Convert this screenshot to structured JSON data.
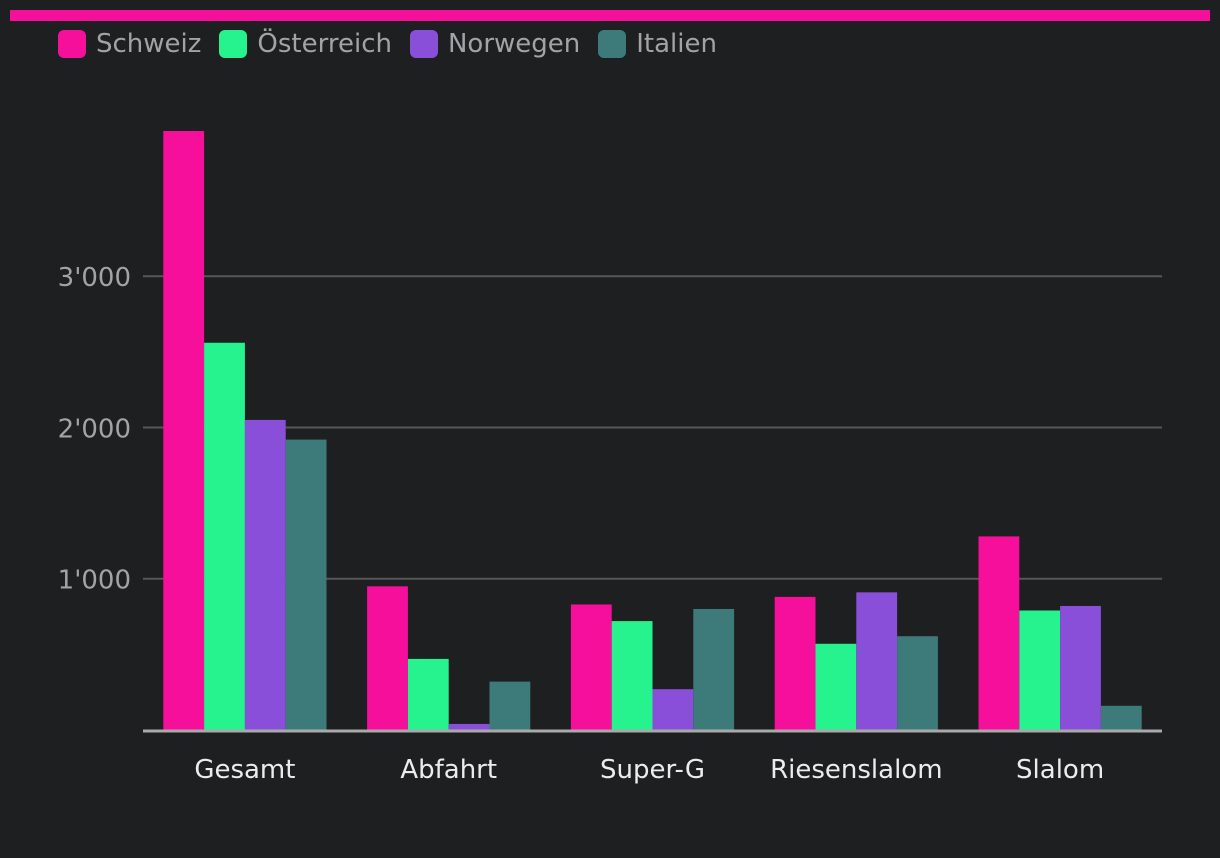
{
  "accent_color": "#f50f9a",
  "chart_data": {
    "type": "bar",
    "categories": [
      "Gesamt",
      "Abfahrt",
      "Super-G",
      "Riesenslalom",
      "Slalom"
    ],
    "series": [
      {
        "name": "Schweiz",
        "color": "#f50f9a",
        "values": [
          3960,
          950,
          830,
          880,
          1280
        ]
      },
      {
        "name": "Österreich",
        "color": "#27f38e",
        "values": [
          2560,
          470,
          720,
          570,
          790
        ]
      },
      {
        "name": "Norwegen",
        "color": "#8a4fd8",
        "values": [
          2050,
          40,
          270,
          910,
          820
        ]
      },
      {
        "name": "Italien",
        "color": "#3d7a7a",
        "values": [
          1920,
          320,
          800,
          620,
          160
        ]
      }
    ],
    "yticks": [
      {
        "value": 1000,
        "label": "1'000"
      },
      {
        "value": 2000,
        "label": "2'000"
      },
      {
        "value": 3000,
        "label": "3'000"
      }
    ],
    "ylim": [
      0,
      3960
    ],
    "grid": true,
    "legend_position": "top-left"
  }
}
